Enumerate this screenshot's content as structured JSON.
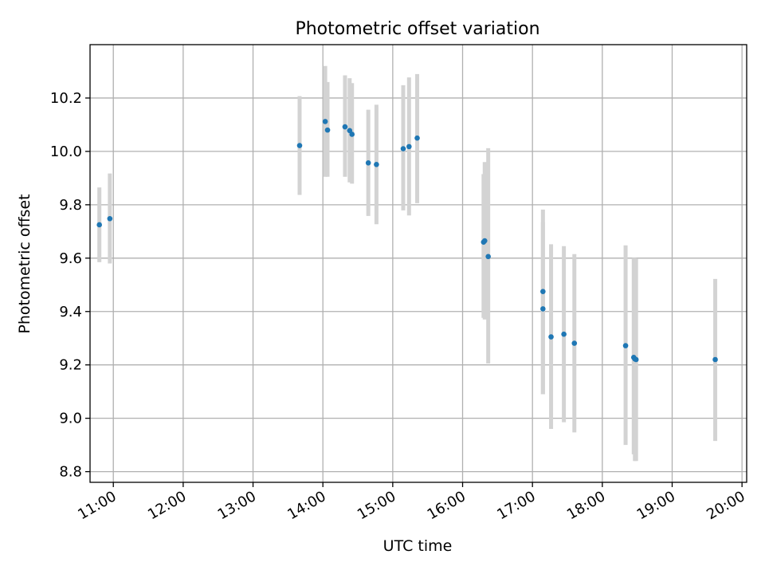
{
  "chart_data": {
    "type": "scatter",
    "title": "Photometric offset variation",
    "xlabel": "UTC time",
    "ylabel": "Photometric offset",
    "x_unit": "UTC time (HH:MM)",
    "xlim": [
      "10:40",
      "20:04"
    ],
    "ylim": [
      8.76,
      10.4
    ],
    "x_ticks": [
      "11:00",
      "12:00",
      "13:00",
      "14:00",
      "15:00",
      "16:00",
      "17:00",
      "18:00",
      "19:00",
      "20:00"
    ],
    "y_ticks": [
      8.8,
      9.0,
      9.2,
      9.4,
      9.6,
      9.8,
      10.0,
      10.2
    ],
    "y_tick_labels": [
      "8.8",
      "9.0",
      "9.2",
      "9.4",
      "9.6",
      "9.8",
      "10.0",
      "10.2"
    ],
    "grid": true,
    "legend": "none",
    "colors": {
      "points": "#1f77b4",
      "error_bars": "#d3d3d3",
      "grid": "#b0b0b0"
    },
    "points": [
      {
        "x": "10:48",
        "y": 9.725,
        "low": 9.585,
        "high": 9.865
      },
      {
        "x": "10:57",
        "y": 9.748,
        "low": 9.58,
        "high": 9.917
      },
      {
        "x": "13:40",
        "y": 10.022,
        "low": 9.837,
        "high": 10.207
      },
      {
        "x": "14:02",
        "y": 10.112,
        "low": 9.905,
        "high": 10.32
      },
      {
        "x": "14:04",
        "y": 10.08,
        "low": 9.905,
        "high": 10.26
      },
      {
        "x": "14:19",
        "y": 10.092,
        "low": 9.905,
        "high": 10.285
      },
      {
        "x": "14:23",
        "y": 10.078,
        "low": 9.884,
        "high": 10.274
      },
      {
        "x": "14:25",
        "y": 10.064,
        "low": 9.879,
        "high": 10.256
      },
      {
        "x": "14:39",
        "y": 9.957,
        "low": 9.758,
        "high": 10.156
      },
      {
        "x": "14:46",
        "y": 9.951,
        "low": 9.727,
        "high": 10.175
      },
      {
        "x": "15:09",
        "y": 10.01,
        "low": 9.779,
        "high": 10.248
      },
      {
        "x": "15:14",
        "y": 10.018,
        "low": 9.76,
        "high": 10.277
      },
      {
        "x": "15:21",
        "y": 10.05,
        "low": 9.806,
        "high": 10.29
      },
      {
        "x": "16:18",
        "y": 9.66,
        "low": 9.376,
        "high": 9.915
      },
      {
        "x": "16:19",
        "y": 9.665,
        "low": 9.37,
        "high": 9.96
      },
      {
        "x": "16:22",
        "y": 9.606,
        "low": 9.205,
        "high": 10.012
      },
      {
        "x": "17:09",
        "y": 9.475,
        "low": 9.09,
        "high": 9.782
      },
      {
        "x": "17:09",
        "y": 9.41,
        "low": 9.09,
        "high": 9.735
      },
      {
        "x": "17:16",
        "y": 9.305,
        "low": 8.96,
        "high": 9.652
      },
      {
        "x": "17:27",
        "y": 9.315,
        "low": 8.985,
        "high": 9.645
      },
      {
        "x": "17:36",
        "y": 9.281,
        "low": 8.947,
        "high": 9.615
      },
      {
        "x": "18:20",
        "y": 9.272,
        "low": 8.9,
        "high": 9.648
      },
      {
        "x": "18:27",
        "y": 9.228,
        "low": 8.865,
        "high": 9.6
      },
      {
        "x": "18:28",
        "y": 9.222,
        "low": 8.84,
        "high": 9.6
      },
      {
        "x": "18:29",
        "y": 9.22,
        "low": 8.84,
        "high": 9.597
      },
      {
        "x": "19:37",
        "y": 9.22,
        "low": 8.915,
        "high": 9.522
      }
    ]
  }
}
